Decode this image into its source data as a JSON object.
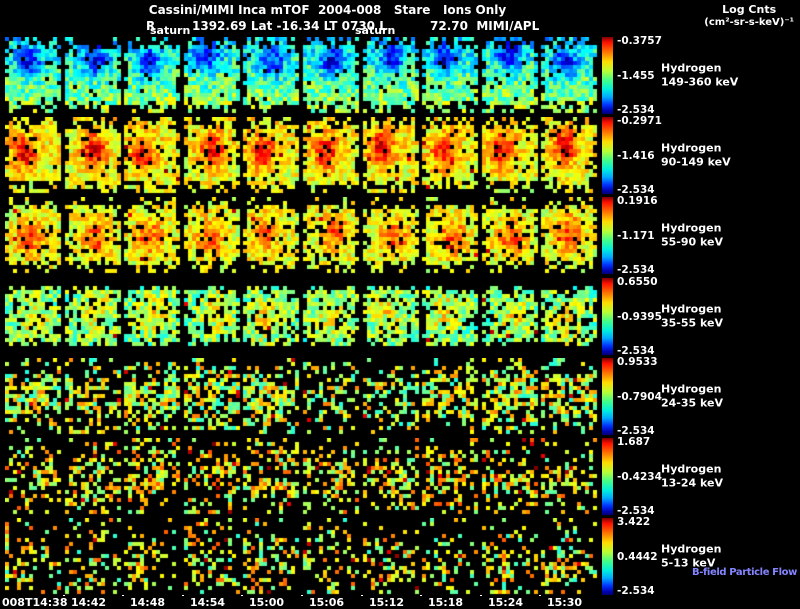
{
  "header": {
    "title": "Cassini/MIMI Inca mTOF  2004-008   Stare   Ions Only",
    "log_cnts_line1": "Log Cnts",
    "log_cnts_line2": "(cm²-sr-s-keV)⁻¹",
    "r_label": "R",
    "ephemeris_left": "1392.69 Lat -16.34 LT 0730 L",
    "ephemeris_right": "72.70  MIMI/APL",
    "saturn_label": "saturn"
  },
  "labels": {
    "bfield": "B-field Particle Flow"
  },
  "colors": {
    "background": "#000000",
    "text": "#ffffff",
    "bfield_text": "#8484ff",
    "colorbar_top": "#ff0000",
    "colorbar_bottom": "#000077"
  },
  "chart_data": {
    "type": "heatmap",
    "title": "Cassini/MIMI Inca mTOF  2004-008   Stare   Ions Only",
    "colorbar_label": "Log Cnts (cm²-sr-s-keV)⁻¹",
    "colormap": "jet",
    "panels_per_row": 10,
    "x_tick_labels": [
      "008T14:38",
      "14:42",
      "14:48",
      "14:54",
      "15:00",
      "15:06",
      "15:12",
      "15:18",
      "15:24",
      "15:30"
    ],
    "rows": [
      {
        "species": "Hydrogen",
        "energy": "149-360 keV",
        "cbar": {
          "top": "-0.3757",
          "mid": "-1.455",
          "bottom": "-2.534"
        },
        "render": {
          "mode": "dense",
          "base": 0.44,
          "noise": 0.13,
          "grad": 0.2,
          "blobX": 0.5,
          "blobY": 0.3,
          "blobSX": 0.025,
          "blobSY": 0.018,
          "blobAmp": -0.3,
          "black": 0.05,
          "edgeBlack": 0.55,
          "hot": 0.0
        }
      },
      {
        "species": "Hydrogen",
        "energy": "90-149 keV",
        "cbar": {
          "top": "-0.2971",
          "mid": "-1.416",
          "bottom": "-2.534"
        },
        "render": {
          "mode": "dense",
          "base": 0.62,
          "noise": 0.1,
          "grad": -0.04,
          "blobX": 0.42,
          "blobY": 0.45,
          "blobSX": 0.03,
          "blobSY": 0.028,
          "blobAmp": 0.26,
          "black": 0.07,
          "edgeBlack": 0.5,
          "hot": 0.01
        }
      },
      {
        "species": "Hydrogen",
        "energy": "55-90 keV",
        "cbar": {
          "top": "0.1916",
          "mid": "-1.171",
          "bottom": "-2.534"
        },
        "render": {
          "mode": "dense",
          "base": 0.6,
          "noise": 0.1,
          "grad": 0,
          "blobX": 0.5,
          "blobY": 0.48,
          "blobSX": 0.035,
          "blobSY": 0.03,
          "blobAmp": 0.2,
          "black": 0.12,
          "edgeBlack": 0.65,
          "hot": 0.008
        }
      },
      {
        "species": "Hydrogen",
        "energy": "35-55 keV",
        "cbar": {
          "top": "0.6550",
          "mid": "-0.9395",
          "bottom": "-2.534"
        },
        "render": {
          "mode": "dense",
          "base": 0.5,
          "noise": 0.13,
          "grad": 0,
          "blobX": 0.5,
          "blobY": 0.5,
          "blobSX": 0.05,
          "blobSY": 0.04,
          "blobAmp": 0.12,
          "black": 0.18,
          "edgeBlack": 0.85,
          "hot": 0.006
        }
      },
      {
        "species": "Hydrogen",
        "energy": "24-35 keV",
        "cbar": {
          "top": "0.9533",
          "mid": "-0.7904",
          "bottom": "-2.534"
        },
        "render": {
          "mode": "sparse",
          "fill": 0.45,
          "bandY": 0.5,
          "bandS": 0.07,
          "base": 0.58,
          "noise": 0.18,
          "hot": 0.02
        }
      },
      {
        "species": "Hydrogen",
        "energy": "13-24 keV",
        "cbar": {
          "top": "1.687",
          "mid": "-0.4234",
          "bottom": "-2.534"
        },
        "render": {
          "mode": "sparse",
          "fill": 0.34,
          "bandY": 0.55,
          "bandS": 0.09,
          "base": 0.62,
          "noise": 0.18,
          "hot": 0.03
        }
      },
      {
        "species": "Hydrogen",
        "energy": "5-13 keV",
        "cbar": {
          "top": "3.422",
          "mid": "0.4442",
          "bottom": "-2.534"
        },
        "render": {
          "mode": "sparse",
          "fill": 0.32,
          "bandY": 0.6,
          "bandS": 0.1,
          "base": 0.6,
          "noise": 0.19,
          "hot": 0.03,
          "xgrad": 0.5
        }
      }
    ]
  }
}
